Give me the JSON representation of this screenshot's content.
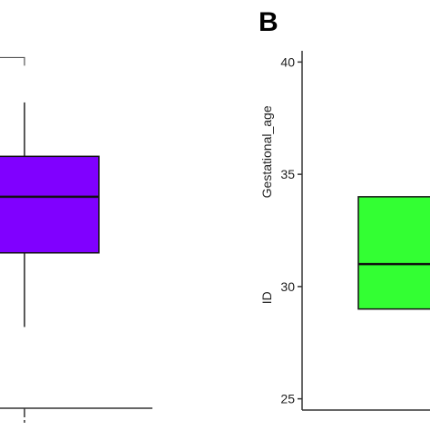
{
  "chart_data": [
    {
      "panel": "",
      "type": "box",
      "fill_color": "#8000ff",
      "xlabel": "",
      "ylabel": "",
      "box": {
        "q1": 31.5,
        "median": 34.0,
        "q3": 35.8,
        "whisker_low": 28.2,
        "whisker_high": 38.2,
        "max_mark": 40.2
      }
    },
    {
      "panel": "B",
      "type": "box",
      "fill_color": "#33ff33",
      "ylabel": "Gestational_age",
      "secondary_ylabel": "ID",
      "ylim": [
        24.5,
        40.5
      ],
      "yticks": [
        "25",
        "30",
        "35",
        "40"
      ],
      "box": {
        "q1": 29,
        "median": 31,
        "q3": 34
      }
    }
  ]
}
